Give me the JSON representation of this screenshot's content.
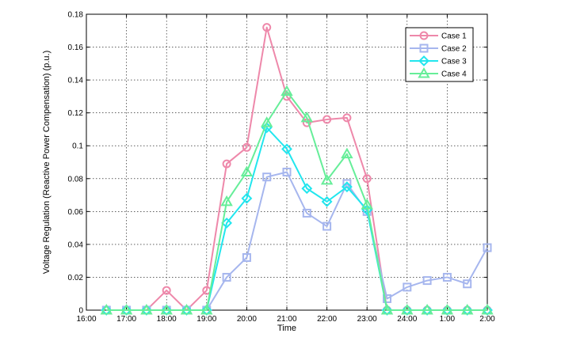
{
  "chart_data": {
    "type": "line",
    "xlabel": "Time",
    "ylabel": "Voltage Regulation (Reactive Power Compensation) (p.u.)",
    "x_ticks": [
      "16:00",
      "17:00",
      "18:00",
      "19:00",
      "20:00",
      "21:00",
      "22:00",
      "23:00",
      "24:00",
      "1:00",
      "2:00"
    ],
    "y_ticks": [
      "0",
      "0.02",
      "0.04",
      "0.06",
      "0.08",
      "0.1",
      "0.12",
      "0.14",
      "0.16",
      "0.18"
    ],
    "ylim": [
      0,
      0.18
    ],
    "grid": true,
    "legend_position": "top-right",
    "categories": [
      "16:30",
      "17:00",
      "17:30",
      "18:00",
      "18:30",
      "19:00",
      "19:30",
      "20:00",
      "20:30",
      "21:00",
      "21:30",
      "22:00",
      "22:30",
      "23:00",
      "23:30",
      "24:00",
      "0:30",
      "1:00",
      "1:30",
      "2:00"
    ],
    "series": [
      {
        "name": "Case 1",
        "color": "#ee88aa",
        "marker": "circle",
        "values": [
          0,
          0,
          0,
          0.012,
          0,
          0.012,
          0.089,
          0.099,
          0.172,
          0.13,
          0.114,
          0.116,
          0.117,
          0.08,
          0,
          0,
          0,
          0,
          0,
          0
        ]
      },
      {
        "name": "Case 2",
        "color": "#a6b6ee",
        "marker": "square",
        "values": [
          0,
          0,
          0,
          0,
          0,
          0,
          0.02,
          0.032,
          0.081,
          0.084,
          0.059,
          0.051,
          0.077,
          0.06,
          0.007,
          0.014,
          0.018,
          0.02,
          0.016,
          0.038
        ]
      },
      {
        "name": "Case 3",
        "color": "#22e6ee",
        "marker": "diamond",
        "values": [
          0,
          0,
          0,
          0,
          0,
          0,
          0.053,
          0.068,
          0.111,
          0.098,
          0.074,
          0.066,
          0.075,
          0.061,
          0,
          0,
          0,
          0,
          0,
          0
        ]
      },
      {
        "name": "Case 4",
        "color": "#66ee99",
        "marker": "triangle",
        "values": [
          0,
          0,
          0,
          0,
          0,
          0,
          0.066,
          0.084,
          0.114,
          0.133,
          0.117,
          0.079,
          0.095,
          0.064,
          0,
          0,
          0,
          0,
          0,
          0
        ]
      }
    ]
  }
}
